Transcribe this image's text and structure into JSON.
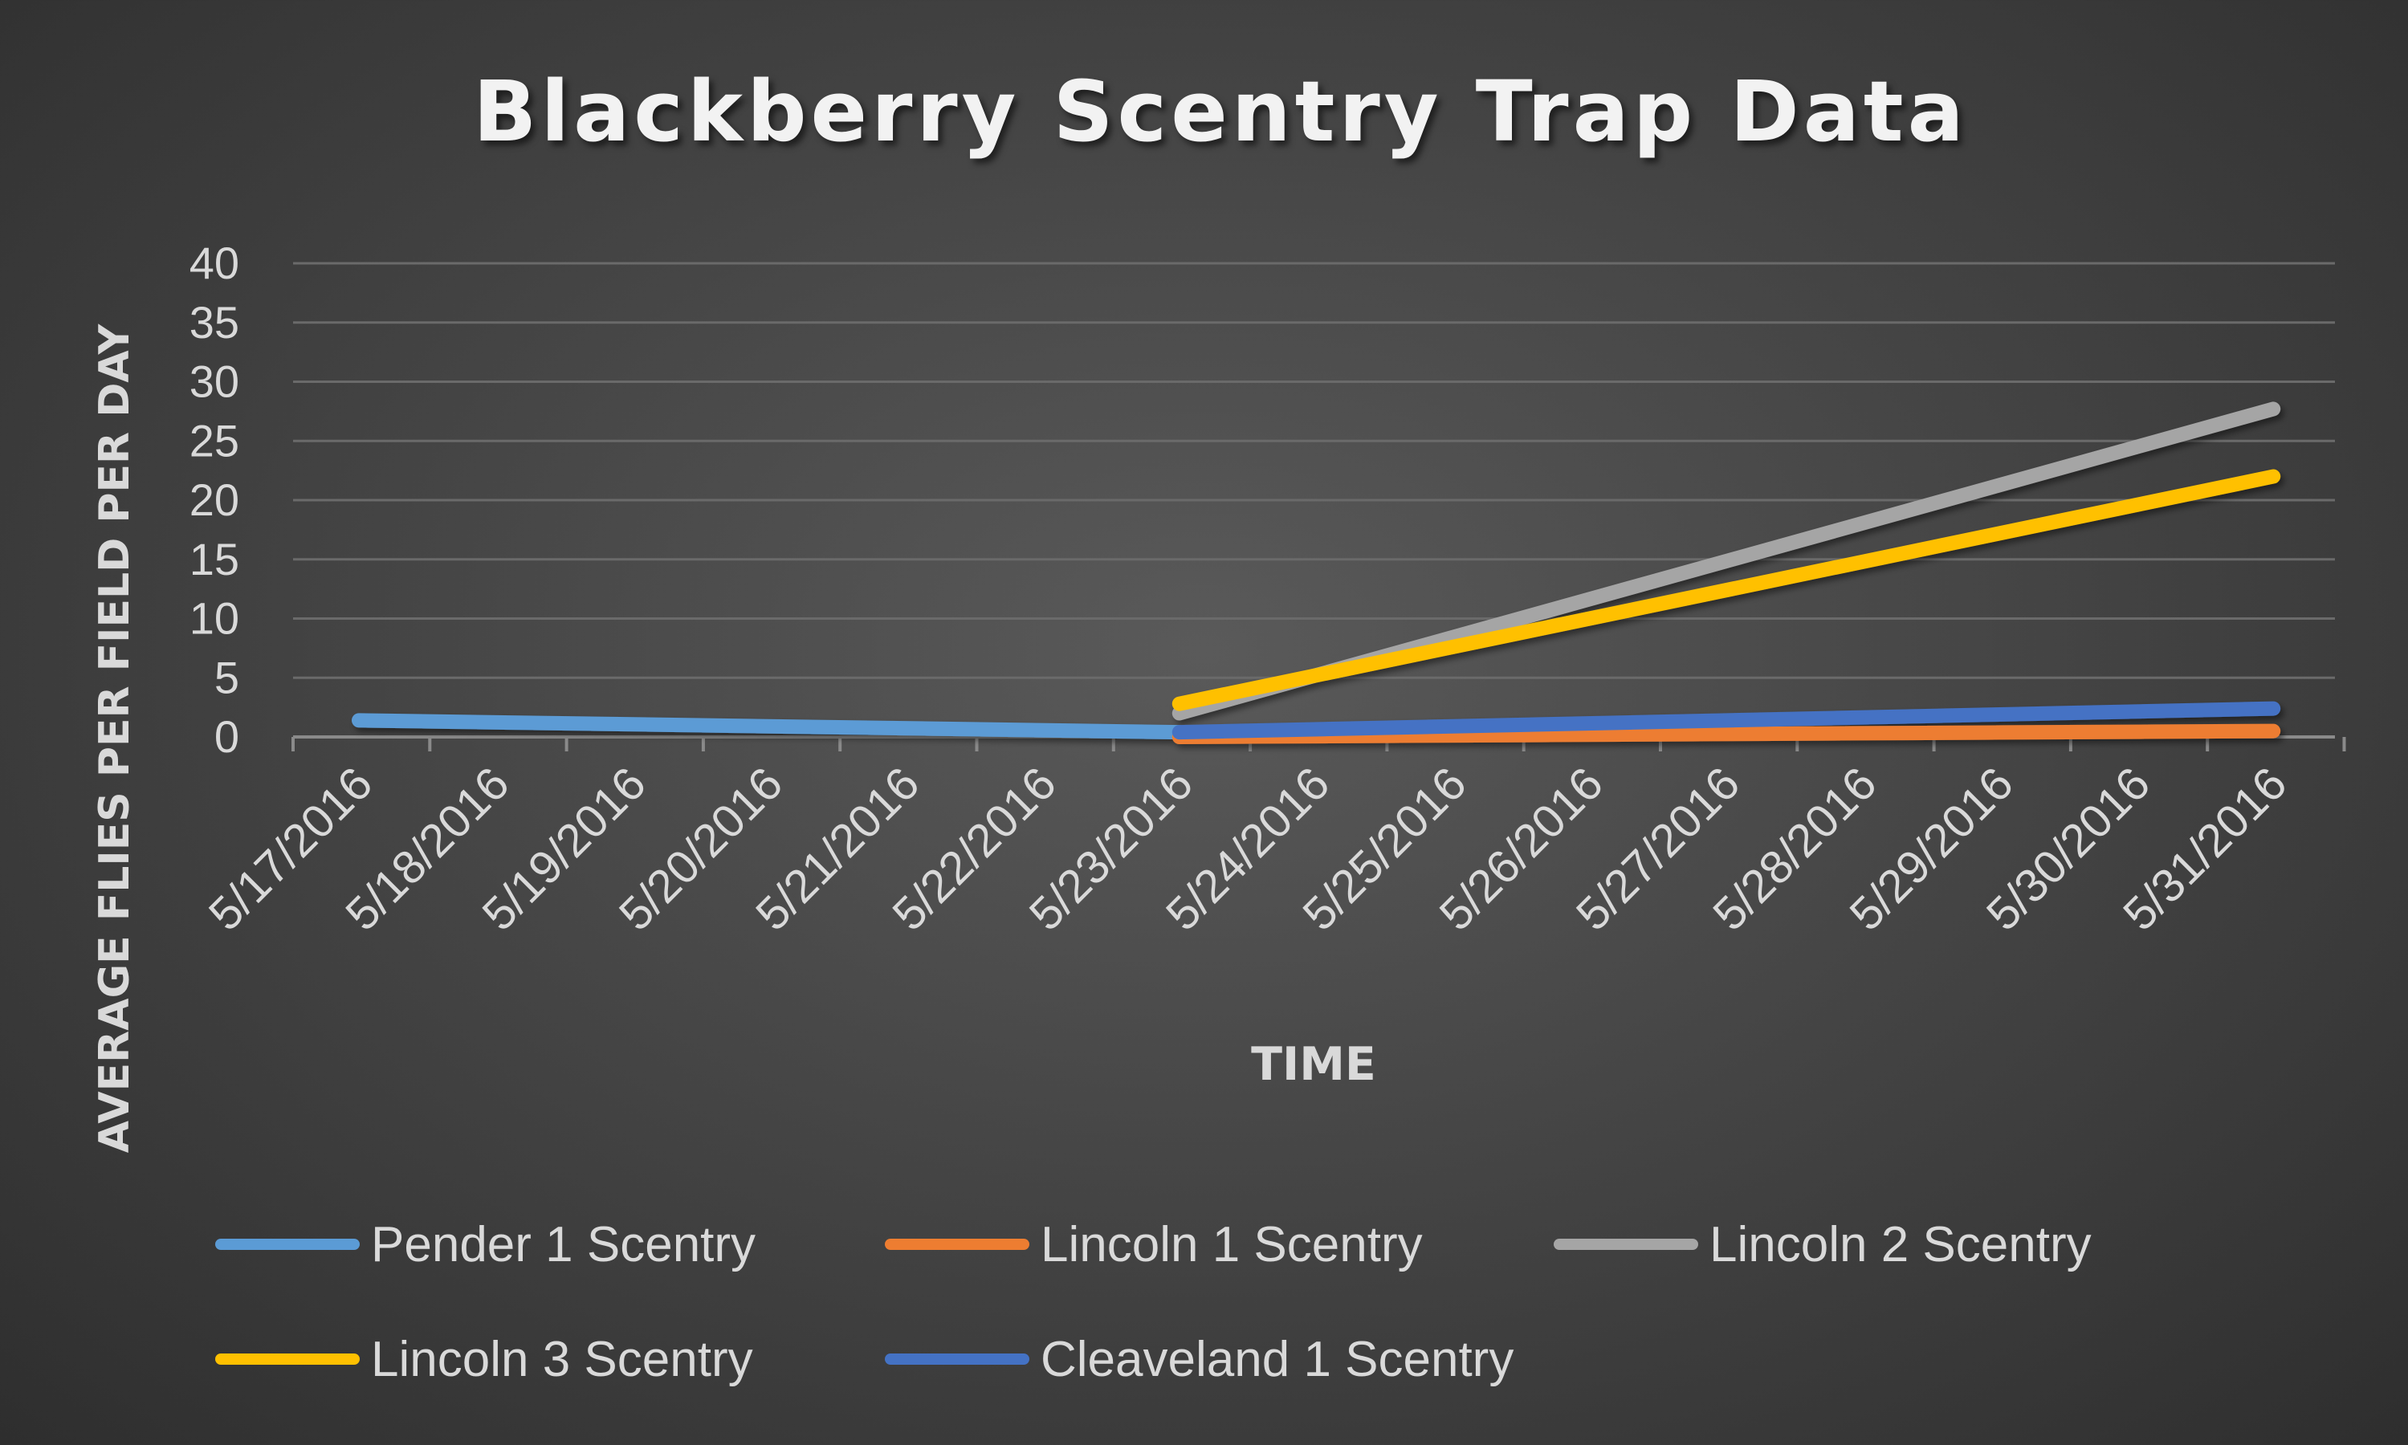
{
  "chart_data": {
    "type": "line",
    "title": "Blackberry Scentry Trap Data",
    "xlabel": "TIME",
    "ylabel": "AVERAGE FLIES PER FIELD PER DAY",
    "ylim": [
      0,
      40
    ],
    "yticks": [
      "0",
      "5",
      "10",
      "15",
      "20",
      "25",
      "30",
      "35",
      "40"
    ],
    "categories": [
      "5/17/2016",
      "5/18/2016",
      "5/19/2016",
      "5/20/2016",
      "5/21/2016",
      "5/22/2016",
      "5/23/2016",
      "5/24/2016",
      "5/25/2016",
      "5/26/2016",
      "5/27/2016",
      "5/28/2016",
      "5/29/2016",
      "5/30/2016",
      "5/31/2016"
    ],
    "grid": true,
    "legend_position": "bottom",
    "series": [
      {
        "name": "Pender 1 Scentry",
        "color": "#5b9bd5",
        "points": [
          {
            "x": "5/17/2016",
            "y": 1.4
          },
          {
            "x": "5/23/2016",
            "y": 0.4
          }
        ]
      },
      {
        "name": "Lincoln 1 Scentry",
        "color": "#ed7d31",
        "points": [
          {
            "x": "5/23/2016",
            "y": 0
          },
          {
            "x": "5/31/2016",
            "y": 0.5
          }
        ]
      },
      {
        "name": "Lincoln 2 Scentry",
        "color": "#a5a5a5",
        "points": [
          {
            "x": "5/23/2016",
            "y": 2
          },
          {
            "x": "5/31/2016",
            "y": 27.7
          }
        ]
      },
      {
        "name": "Lincoln 3 Scentry",
        "color": "#ffc000",
        "points": [
          {
            "x": "5/23/2016",
            "y": 2.8
          },
          {
            "x": "5/31/2016",
            "y": 22
          }
        ]
      },
      {
        "name": "Cleaveland 1 Scentry",
        "color": "#4472c4",
        "points": [
          {
            "x": "5/23/2016",
            "y": 0.4
          },
          {
            "x": "5/31/2016",
            "y": 2.4
          }
        ]
      }
    ]
  }
}
